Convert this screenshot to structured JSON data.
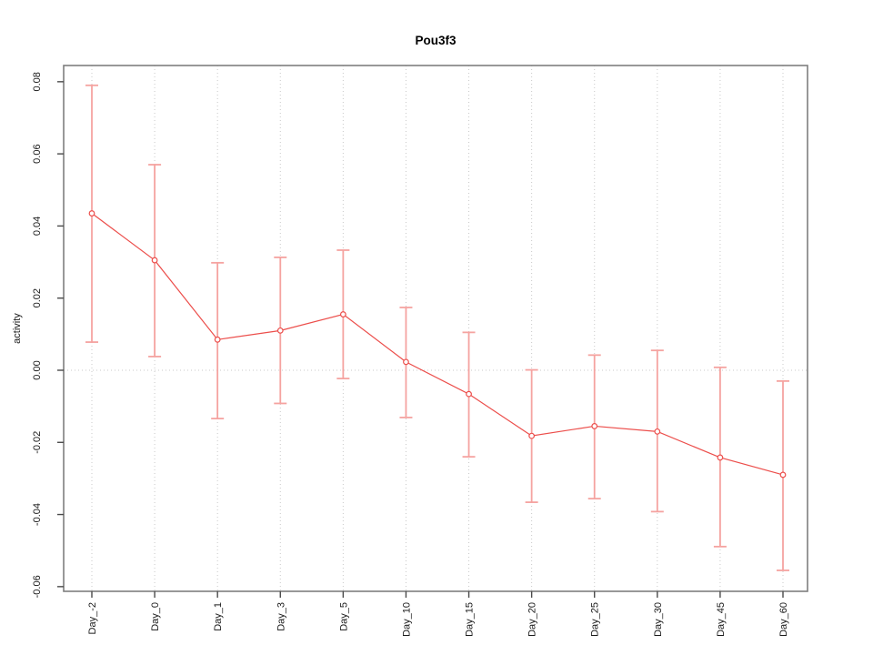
{
  "chart_data": {
    "type": "line",
    "title": "Pou3f3",
    "xlabel": "",
    "ylabel": "activity",
    "legend_position": "none",
    "grid": "dotted vertical gridline at each category; dotted horizontal line at y=0",
    "categories": [
      "Day_-2",
      "Day_0",
      "Day_1",
      "Day_3",
      "Day_5",
      "Day_10",
      "Day_15",
      "Day_20",
      "Day_25",
      "Day_30",
      "Day_45",
      "Day_60"
    ],
    "series": [
      {
        "name": "activity",
        "values": [
          0.0435,
          0.0305,
          0.0085,
          0.011,
          0.0155,
          0.0023,
          -0.0066,
          -0.0182,
          -0.0155,
          -0.017,
          -0.0242,
          -0.029
        ]
      }
    ],
    "error_upper": [
      0.079,
      0.057,
      0.0298,
      0.0313,
      0.0333,
      0.0174,
      0.0105,
      0.0001,
      0.0042,
      0.0055,
      0.0008,
      -0.003
    ],
    "error_lower": [
      0.0078,
      0.0038,
      -0.0134,
      -0.0092,
      -0.0023,
      -0.0131,
      -0.024,
      -0.0366,
      -0.0356,
      -0.0392,
      -0.0489,
      -0.0555
    ],
    "yticks": {
      "values": [
        -0.06,
        -0.04,
        -0.02,
        0.0,
        0.02,
        0.04,
        0.06,
        0.08
      ],
      "labels": [
        "-0.06",
        "-0.04",
        "-0.02",
        "0.00",
        "0.02",
        "0.04",
        "0.06",
        "0.08"
      ]
    },
    "ylim": [
      -0.0613,
      0.0845
    ],
    "colors": {
      "line": "#ec4e4b",
      "marker": "#ec4e4b",
      "marker_fill": "#ffffff",
      "error_bar": "#f5a3a0",
      "gridline": "#c9c9c9",
      "axis": "#7e7e7e",
      "tick": "#4a4a4a",
      "text": "#1a1a1a",
      "background": "#ffffff"
    }
  }
}
